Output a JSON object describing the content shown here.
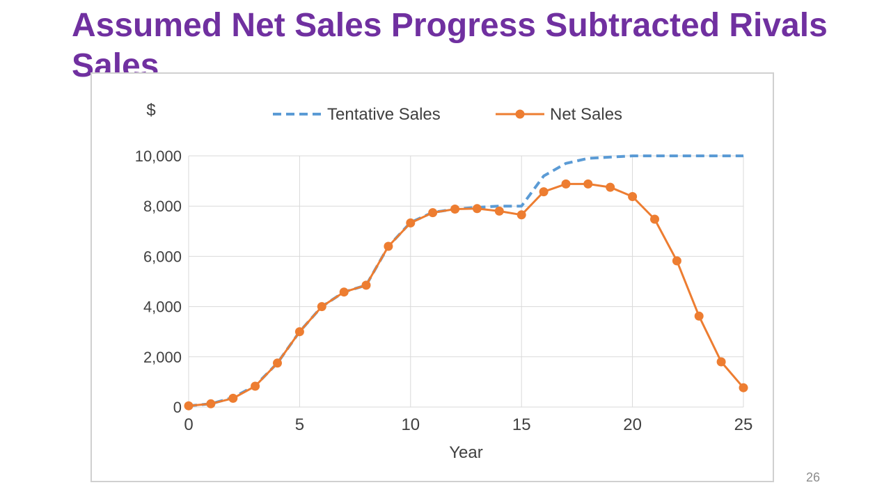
{
  "slide": {
    "title": "Assumed Net Sales Progress Subtracted Rivals Sales",
    "page_number": "26"
  },
  "colors": {
    "title": "#7030a0",
    "tentative_series": "#5b9bd5",
    "net_series": "#ed7d31",
    "grid": "#d9d9d9",
    "axis_text": "#404040"
  },
  "chart_data": {
    "type": "line",
    "title": "",
    "xlabel": "Year",
    "ylabel": "$",
    "xlim": [
      0,
      25
    ],
    "ylim": [
      0,
      10000
    ],
    "x_ticks": [
      0,
      5,
      10,
      15,
      20,
      25
    ],
    "y_ticks": [
      0,
      2000,
      4000,
      6000,
      8000,
      10000
    ],
    "x_tick_labels": [
      "0",
      "5",
      "10",
      "15",
      "20",
      "25"
    ],
    "y_tick_labels": [
      "0",
      "2,000",
      "4,000",
      "6,000",
      "8,000",
      "10,000"
    ],
    "grid": true,
    "legend_position": "top",
    "x": [
      0,
      1,
      2,
      3,
      4,
      5,
      6,
      7,
      8,
      9,
      10,
      11,
      12,
      13,
      14,
      15,
      16,
      17,
      18,
      19,
      20,
      21,
      22,
      23,
      24,
      25
    ],
    "series": [
      {
        "name": "Tentative Sales",
        "style": "dashed",
        "markers": false,
        "color": "#5b9bd5",
        "values": [
          50,
          130,
          380,
          850,
          1750,
          3000,
          4000,
          4580,
          4850,
          6400,
          7350,
          7750,
          7880,
          7950,
          8000,
          8000,
          9200,
          9700,
          9900,
          9950,
          10000,
          10000,
          10000,
          10000,
          10000,
          10000
        ]
      },
      {
        "name": "Net Sales",
        "style": "solid",
        "markers": true,
        "color": "#ed7d31",
        "values": [
          50,
          130,
          350,
          830,
          1750,
          3000,
          4000,
          4580,
          4850,
          6400,
          7330,
          7740,
          7880,
          7900,
          7800,
          7650,
          8570,
          8880,
          8880,
          8750,
          8380,
          7480,
          5820,
          3620,
          1800,
          770
        ]
      }
    ]
  }
}
